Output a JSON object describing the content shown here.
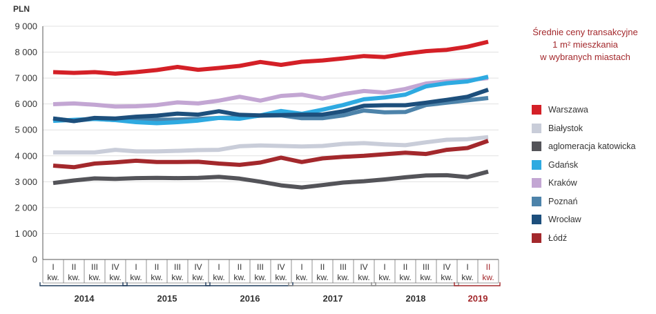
{
  "chart_data": {
    "type": "line",
    "unit_label": "PLN",
    "legend_title": [
      "Średnie ceny transakcyjne",
      "1 m² mieszkania",
      "w wybranych miastach"
    ],
    "y_ticks": [
      "9 000",
      "8 000",
      "7 000",
      "6 000",
      "5 000",
      "4 000",
      "3 000",
      "2 000",
      "1 000",
      "0"
    ],
    "ylim": [
      0,
      9000
    ],
    "grid": true,
    "quarters": [
      {
        "q": "I",
        "kw": "kw."
      },
      {
        "q": "II",
        "kw": "kw."
      },
      {
        "q": "III",
        "kw": "kw."
      },
      {
        "q": "IV",
        "kw": "kw."
      },
      {
        "q": "I",
        "kw": "kw."
      },
      {
        "q": "II",
        "kw": "kw."
      },
      {
        "q": "III",
        "kw": "kw."
      },
      {
        "q": "IV",
        "kw": "kw."
      },
      {
        "q": "I",
        "kw": "kw."
      },
      {
        "q": "II",
        "kw": "kw."
      },
      {
        "q": "III",
        "kw": "kw."
      },
      {
        "q": "IV",
        "kw": "kw."
      },
      {
        "q": "I",
        "kw": "kw."
      },
      {
        "q": "II",
        "kw": "kw."
      },
      {
        "q": "III",
        "kw": "kw."
      },
      {
        "q": "IV",
        "kw": "kw."
      },
      {
        "q": "I",
        "kw": "kw."
      },
      {
        "q": "II",
        "kw": "kw."
      },
      {
        "q": "III",
        "kw": "kw."
      },
      {
        "q": "IV",
        "kw": "kw."
      },
      {
        "q": "I",
        "kw": "kw."
      },
      {
        "q": "II",
        "kw": "kw."
      }
    ],
    "years": [
      {
        "label": "2014",
        "color": "#1f3b5c"
      },
      {
        "label": "2015",
        "color": "#1f3b5c"
      },
      {
        "label": "2016",
        "color": "#1f3b5c"
      },
      {
        "label": "2017",
        "color": "#8a8a8a"
      },
      {
        "label": "2018",
        "color": "#8a8a8a"
      },
      {
        "label": "2019",
        "color": "#a3282c"
      }
    ],
    "series": [
      {
        "name": "Warszawa",
        "color": "#d42027",
        "values": [
          7230,
          7200,
          7230,
          7170,
          7230,
          7310,
          7430,
          7320,
          7390,
          7470,
          7620,
          7510,
          7630,
          7680,
          7760,
          7850,
          7810,
          7940,
          8040,
          8090,
          8210,
          8400
        ]
      },
      {
        "name": "Białystok",
        "color": "#c9cdd9",
        "values": [
          4130,
          4130,
          4130,
          4230,
          4170,
          4170,
          4190,
          4220,
          4230,
          4370,
          4400,
          4380,
          4360,
          4380,
          4460,
          4490,
          4440,
          4410,
          4520,
          4620,
          4640,
          4720
        ]
      },
      {
        "name": "aglomeracja katowicka",
        "color": "#545459",
        "values": [
          2950,
          3050,
          3130,
          3110,
          3140,
          3150,
          3140,
          3150,
          3190,
          3120,
          3000,
          2860,
          2780,
          2870,
          2970,
          3020,
          3090,
          3170,
          3240,
          3250,
          3180,
          3390
        ]
      },
      {
        "name": "Gdańsk",
        "color": "#2eaae1",
        "values": [
          5350,
          5390,
          5420,
          5380,
          5300,
          5260,
          5300,
          5360,
          5460,
          5430,
          5560,
          5730,
          5620,
          5780,
          5960,
          6180,
          6250,
          6360,
          6680,
          6800,
          6870,
          7050
        ]
      },
      {
        "name": "Kraków",
        "color": "#c3a6d3",
        "values": [
          5990,
          6020,
          5970,
          5900,
          5910,
          5960,
          6060,
          6020,
          6130,
          6280,
          6130,
          6310,
          6360,
          6210,
          6380,
          6500,
          6440,
          6580,
          6790,
          6870,
          6920,
          7000
        ]
      },
      {
        "name": "Poznań",
        "color": "#4d83aa",
        "values": [
          5440,
          5350,
          5430,
          5380,
          5380,
          5390,
          5400,
          5420,
          5460,
          5480,
          5550,
          5560,
          5450,
          5450,
          5560,
          5750,
          5680,
          5690,
          5960,
          6050,
          6140,
          6230
        ]
      },
      {
        "name": "Wrocław",
        "color": "#1d4f7c",
        "values": [
          5440,
          5340,
          5460,
          5440,
          5510,
          5550,
          5630,
          5590,
          5720,
          5580,
          5560,
          5570,
          5590,
          5590,
          5720,
          5930,
          5950,
          5950,
          6050,
          6160,
          6280,
          6550
        ]
      },
      {
        "name": "Łódź",
        "color": "#a3282c",
        "values": [
          3620,
          3560,
          3700,
          3750,
          3810,
          3760,
          3760,
          3770,
          3700,
          3650,
          3740,
          3930,
          3760,
          3900,
          3960,
          4000,
          4060,
          4120,
          4070,
          4230,
          4300,
          4580
        ]
      }
    ]
  }
}
